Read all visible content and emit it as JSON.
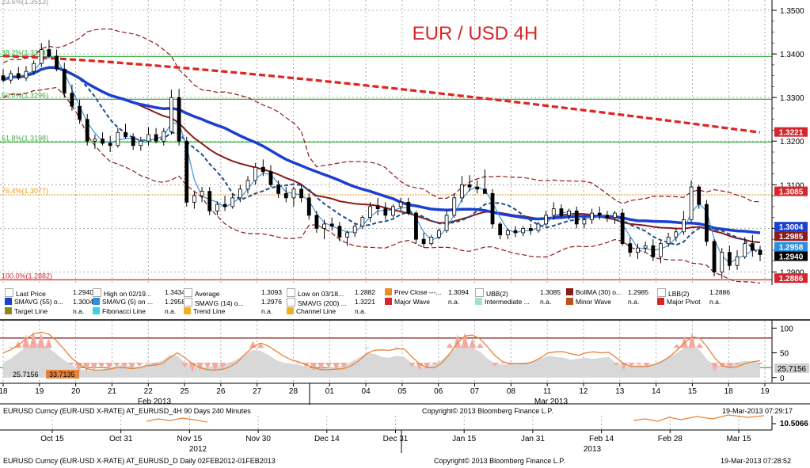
{
  "chart_data": {
    "type": "candlestick",
    "title": "EUR / USD 4H",
    "ylim": [
      1.287,
      1.352
    ],
    "y_ticks": [
      "1.3500",
      "1.3400",
      "1.3300",
      "1.3200",
      "1.3100",
      "1.3000",
      "1.2900"
    ],
    "x_ticks": [
      "18",
      "19",
      "20",
      "21",
      "22",
      "25",
      "26",
      "27",
      "28",
      "01",
      "04",
      "05",
      "06",
      "07",
      "08",
      "11",
      "12",
      "13",
      "14",
      "15",
      "18",
      "19"
    ],
    "x_group_labels": [
      "Feb 2013",
      "Mar 2013"
    ],
    "top_clipped_label": "23.6%(1.3513)",
    "fib_levels": [
      {
        "label": "38.2%(1.3394)",
        "value": 1.3394
      },
      {
        "label": "50.0%(1.3296)",
        "value": 1.3296
      },
      {
        "label": "61.8%(1.3198)",
        "value": 1.3198
      },
      {
        "label": "76.4%(1.3077)",
        "value": 1.3077
      },
      {
        "label": "100.0%(1.2882)",
        "value": 1.2882
      }
    ],
    "price_tags": [
      {
        "value": "1.3221",
        "bg": "#d6262c",
        "fg": "#ffffff"
      },
      {
        "value": "1.3085",
        "bg": "#d6262c",
        "fg": "#ffffff"
      },
      {
        "value": "1.3004",
        "bg": "#1b3fd0",
        "fg": "#ffffff"
      },
      {
        "value": "1.2985",
        "bg": "#8b1a1a",
        "fg": "#ffffff"
      },
      {
        "value": "1.2958",
        "bg": "#2a8fe0",
        "fg": "#ffffff"
      },
      {
        "value": "1.2940",
        "bg": "#000000",
        "fg": "#ffffff"
      },
      {
        "value": "1.2886",
        "bg": "#d6262c",
        "fg": "#ffffff"
      }
    ],
    "candles": [
      [
        1.335,
        1.3365,
        1.3335,
        1.334
      ],
      [
        1.334,
        1.3362,
        1.3332,
        1.3355
      ],
      [
        1.3355,
        1.337,
        1.334,
        1.3345
      ],
      [
        1.3345,
        1.3372,
        1.3338,
        1.336
      ],
      [
        1.336,
        1.3385,
        1.3352,
        1.3378
      ],
      [
        1.3378,
        1.3425,
        1.337,
        1.341
      ],
      [
        1.341,
        1.3432,
        1.339,
        1.3395
      ],
      [
        1.3395,
        1.341,
        1.336,
        1.3365
      ],
      [
        1.3365,
        1.338,
        1.33,
        1.331
      ],
      [
        1.331,
        1.333,
        1.327,
        1.328
      ],
      [
        1.328,
        1.3295,
        1.324,
        1.325
      ],
      [
        1.325,
        1.3262,
        1.319,
        1.32
      ],
      [
        1.32,
        1.3215,
        1.3182,
        1.3205
      ],
      [
        1.3205,
        1.322,
        1.319,
        1.3195
      ],
      [
        1.3195,
        1.3212,
        1.3175,
        1.319
      ],
      [
        1.319,
        1.323,
        1.3185,
        1.322
      ],
      [
        1.322,
        1.324,
        1.3205,
        1.321
      ],
      [
        1.321,
        1.3218,
        1.318,
        1.319
      ],
      [
        1.319,
        1.321,
        1.3178,
        1.32
      ],
      [
        1.32,
        1.3232,
        1.319,
        1.3215
      ],
      [
        1.3215,
        1.323,
        1.3195,
        1.32
      ],
      [
        1.32,
        1.323,
        1.319,
        1.3222
      ],
      [
        1.3222,
        1.3318,
        1.3215,
        1.33
      ],
      [
        1.33,
        1.332,
        1.319,
        1.32
      ],
      [
        1.32,
        1.321,
        1.305,
        1.306
      ],
      [
        1.306,
        1.3085,
        1.3045,
        1.3075
      ],
      [
        1.3075,
        1.3095,
        1.306,
        1.3085
      ],
      [
        1.3085,
        1.3095,
        1.303,
        1.304
      ],
      [
        1.304,
        1.3062,
        1.303,
        1.3055
      ],
      [
        1.3055,
        1.3075,
        1.304,
        1.305
      ],
      [
        1.305,
        1.308,
        1.3045,
        1.307
      ],
      [
        1.307,
        1.31,
        1.306,
        1.309
      ],
      [
        1.309,
        1.312,
        1.308,
        1.311
      ],
      [
        1.311,
        1.315,
        1.31,
        1.314
      ],
      [
        1.314,
        1.3158,
        1.312,
        1.313
      ],
      [
        1.313,
        1.3145,
        1.3095,
        1.31
      ],
      [
        1.31,
        1.311,
        1.307,
        1.308
      ],
      [
        1.308,
        1.3095,
        1.306,
        1.307
      ],
      [
        1.307,
        1.3095,
        1.305,
        1.309
      ],
      [
        1.309,
        1.31,
        1.306,
        1.307
      ],
      [
        1.307,
        1.308,
        1.302,
        1.303
      ],
      [
        1.303,
        1.304,
        1.299,
        1.3
      ],
      [
        1.3,
        1.302,
        1.2975,
        1.301
      ],
      [
        1.301,
        1.3025,
        1.2995,
        1.3005
      ],
      [
        1.3005,
        1.3015,
        1.297,
        1.298
      ],
      [
        1.298,
        1.2995,
        1.296,
        1.299
      ],
      [
        1.299,
        1.301,
        1.298,
        1.3005
      ],
      [
        1.3005,
        1.303,
        1.2998,
        1.3025
      ],
      [
        1.3025,
        1.306,
        1.3015,
        1.305
      ],
      [
        1.305,
        1.307,
        1.303,
        1.3045
      ],
      [
        1.3045,
        1.306,
        1.302,
        1.303
      ],
      [
        1.303,
        1.3055,
        1.3025,
        1.305
      ],
      [
        1.305,
        1.307,
        1.304,
        1.306
      ],
      [
        1.306,
        1.307,
        1.303,
        1.3035
      ],
      [
        1.3035,
        1.304,
        1.2965,
        1.2975
      ],
      [
        1.2975,
        1.299,
        1.2955,
        1.2965
      ],
      [
        1.2965,
        1.2985,
        1.296,
        1.298
      ],
      [
        1.298,
        1.3,
        1.2975,
        1.2995
      ],
      [
        1.2995,
        1.304,
        1.299,
        1.303
      ],
      [
        1.303,
        1.308,
        1.3025,
        1.307
      ],
      [
        1.307,
        1.312,
        1.306,
        1.31
      ],
      [
        1.31,
        1.3122,
        1.3085,
        1.3095
      ],
      [
        1.3095,
        1.311,
        1.308,
        1.309
      ],
      [
        1.309,
        1.3135,
        1.3085,
        1.308
      ],
      [
        1.308,
        1.309,
        1.3,
        1.301
      ],
      [
        1.301,
        1.3015,
        1.2975,
        1.2985
      ],
      [
        1.2985,
        1.3,
        1.2975,
        1.2995
      ],
      [
        1.2995,
        1.3005,
        1.298,
        1.299
      ],
      [
        1.299,
        1.3005,
        1.2982,
        1.3
      ],
      [
        1.3,
        1.301,
        1.2985,
        1.2995
      ],
      [
        1.2995,
        1.3015,
        1.299,
        1.301
      ],
      [
        1.301,
        1.304,
        1.3005,
        1.303
      ],
      [
        1.303,
        1.306,
        1.302,
        1.3045
      ],
      [
        1.3045,
        1.3055,
        1.3025,
        1.303
      ],
      [
        1.303,
        1.3045,
        1.302,
        1.304
      ],
      [
        1.304,
        1.305,
        1.3,
        1.301
      ],
      [
        1.301,
        1.3025,
        1.3,
        1.302
      ],
      [
        1.302,
        1.3045,
        1.301,
        1.3035
      ],
      [
        1.3035,
        1.305,
        1.302,
        1.303
      ],
      [
        1.303,
        1.304,
        1.3015,
        1.3025
      ],
      [
        1.3025,
        1.304,
        1.301,
        1.3035
      ],
      [
        1.3035,
        1.3045,
        1.296,
        1.2965
      ],
      [
        1.2965,
        1.298,
        1.2935,
        1.2945
      ],
      [
        1.2945,
        1.2965,
        1.293,
        1.2955
      ],
      [
        1.2955,
        1.297,
        1.2945,
        1.296
      ],
      [
        1.296,
        1.2975,
        1.2925,
        1.2935
      ],
      [
        1.2935,
        1.297,
        1.292,
        1.2965
      ],
      [
        1.2965,
        1.299,
        1.2958,
        1.298
      ],
      [
        1.298,
        1.3,
        1.297,
        1.2992
      ],
      [
        1.2992,
        1.304,
        1.2985,
        1.302
      ],
      [
        1.302,
        1.311,
        1.3015,
        1.3095
      ],
      [
        1.3095,
        1.31,
        1.3045,
        1.3055
      ],
      [
        1.3055,
        1.3065,
        1.296,
        1.297
      ],
      [
        1.297,
        1.2975,
        1.289,
        1.29
      ],
      [
        1.29,
        1.2955,
        1.2885,
        1.2945
      ],
      [
        1.2945,
        1.296,
        1.2905,
        1.2915
      ],
      [
        1.2915,
        1.295,
        1.2905,
        1.2935
      ],
      [
        1.2935,
        1.298,
        1.293,
        1.2965
      ],
      [
        1.2965,
        1.2985,
        1.2935,
        1.295
      ],
      [
        1.295,
        1.296,
        1.2925,
        1.294
      ]
    ],
    "osc_ticks": [
      "100",
      "50",
      "0"
    ],
    "osc_ylim": [
      -10,
      115
    ],
    "osc_levels": [
      80,
      20
    ],
    "osc_tags": [
      {
        "value": "33.7135",
        "bg": "#e8823a"
      },
      {
        "value": "25.7156",
        "bg": "#d0d0d0"
      }
    ],
    "osc_k": [
      55,
      62,
      74,
      88,
      95,
      92,
      80,
      60,
      40,
      25,
      12,
      10,
      14,
      18,
      16,
      22,
      20,
      15,
      22,
      28,
      24,
      30,
      60,
      55,
      20,
      10,
      14,
      18,
      12,
      18,
      28,
      40,
      60,
      74,
      70,
      55,
      40,
      30,
      32,
      28,
      20,
      12,
      14,
      20,
      15,
      18,
      30,
      45,
      62,
      58,
      48,
      55,
      62,
      55,
      22,
      14,
      18,
      26,
      45,
      70,
      88,
      92,
      80,
      70,
      40,
      22,
      28,
      25,
      30,
      28,
      35,
      48,
      58,
      50,
      55,
      40,
      45,
      55,
      50,
      48,
      55,
      24,
      15,
      22,
      26,
      20,
      30,
      40,
      55,
      68,
      85,
      92,
      70,
      30,
      12,
      20,
      18,
      25,
      35,
      30,
      26
    ],
    "osc_d": [
      50,
      56,
      66,
      78,
      88,
      92,
      88,
      75,
      58,
      40,
      28,
      18,
      15,
      15,
      17,
      20,
      20,
      18,
      20,
      24,
      25,
      28,
      40,
      50,
      40,
      28,
      20,
      16,
      15,
      17,
      22,
      32,
      48,
      62,
      70,
      64,
      54,
      44,
      36,
      32,
      26,
      20,
      16,
      16,
      17,
      18,
      24,
      34,
      48,
      55,
      56,
      55,
      58,
      58,
      42,
      28,
      20,
      20,
      30,
      48,
      70,
      84,
      86,
      78,
      62,
      44,
      32,
      28,
      28,
      28,
      32,
      40,
      50,
      52,
      52,
      48,
      45,
      50,
      52,
      50,
      51,
      40,
      28,
      22,
      22,
      22,
      26,
      32,
      42,
      55,
      70,
      82,
      80,
      62,
      40,
      24,
      20,
      22,
      28,
      32,
      34
    ],
    "osc_area": [
      30,
      38,
      50,
      62,
      70,
      68,
      60,
      48,
      36,
      26,
      18,
      14,
      14,
      16,
      20,
      24,
      26,
      22,
      20,
      28,
      30,
      34,
      46,
      44,
      30,
      22,
      20,
      22,
      24,
      26,
      30,
      38,
      48,
      56,
      54,
      46,
      36,
      30,
      28,
      26,
      22,
      18,
      18,
      20,
      22,
      24,
      32,
      40,
      50,
      48,
      42,
      40,
      44,
      42,
      28,
      20,
      22,
      28,
      36,
      50,
      62,
      66,
      60,
      52,
      38,
      28,
      26,
      28,
      30,
      30,
      32,
      38,
      44,
      42,
      40,
      36,
      38,
      40,
      38,
      40,
      42,
      28,
      22,
      24,
      26,
      24,
      28,
      34,
      42,
      50,
      60,
      64,
      56,
      36,
      24,
      26,
      26,
      30,
      34,
      32,
      30
    ],
    "osc_x_ticks": [
      "18",
      "19",
      "20",
      "21",
      "22",
      "25",
      "26",
      "27",
      "28",
      "01",
      "04",
      "05",
      "06",
      "07",
      "08",
      "11",
      "12",
      "13",
      "14",
      "15",
      "18",
      "19"
    ],
    "mini_x_ticks": [
      "Oct 15",
      "Oct 31",
      "Nov 15",
      "Nov 30",
      "Dec 14",
      "Dec 31",
      "Jan 15",
      "Jan 31",
      "Feb 14",
      "Feb 28",
      "Mar 15"
    ],
    "mini_year_labels": [
      "2012",
      "2013"
    ],
    "mini_tag": "10.5066"
  },
  "legend": {
    "rows": [
      [
        {
          "color": "#ffffff",
          "text": "Last Price",
          "value": "1.2940"
        },
        {
          "color": "#ffffff",
          "text": "High on 02/19...",
          "value": "1.3434"
        },
        {
          "color": "#ffffff",
          "text": "Average",
          "value": "1.3093"
        },
        {
          "color": "#ffffff",
          "text": "Low on 03/18...",
          "value": "1.2882"
        },
        {
          "color": "#f08a24",
          "text": "Prev Close ---...",
          "value": "1.3094"
        },
        {
          "color": "#ffffff",
          "text": "UBB(2)",
          "value": "1.3085"
        },
        {
          "color": "#8b1a1a",
          "text": "BollMA (30) o...",
          "value": "1.2985"
        },
        {
          "color": "#ffffff",
          "text": "LBB(2)",
          "value": "1.2886"
        }
      ],
      [
        {
          "color": "#1b3fd0",
          "text": "SMAVG (55) o...",
          "value": "1.3004"
        },
        {
          "color": "#2a8fe0",
          "text": "SMAVG (5) on ...",
          "value": "1.2958"
        },
        {
          "color": "#ffffff",
          "text": "SMAVG (14) o...",
          "value": "1.2976"
        },
        {
          "color": "#ffffff",
          "text": "SMAVG (200) ...",
          "value": "1.3221"
        },
        {
          "color": "#d6262c",
          "text": "Major Wave",
          "value": "n.a."
        },
        {
          "color": "#9fe3c8",
          "text": "Intermediate ...",
          "value": "n.a."
        },
        {
          "color": "#c0501c",
          "text": "Minor Wave",
          "value": "n.a."
        },
        {
          "color": "#d6262c",
          "text": "Major Pivot",
          "value": "n.a."
        }
      ],
      [
        {
          "color": "#8a8a1a",
          "text": "Target Line",
          "value": "n.a."
        },
        {
          "color": "#3ad0e0",
          "text": "Fibonacci Line",
          "value": "n.a."
        },
        {
          "color": "#f0b020",
          "text": "Trend Line",
          "value": "n.a."
        },
        {
          "color": "#f0b020",
          "text": "Channel Line",
          "value": "n.a."
        }
      ]
    ]
  },
  "footer": {
    "line1_left": "EURUSD Curncy (EUR-USD X-RATE) AT_EURUSD_4H 90 Days 240 Minutes",
    "line1_center": "Copyright© 2013 Bloomberg Finance L.P.",
    "line1_right": "19-Mar-2013 07:29:17",
    "line2_left": "EURUSD Curncy (EUR-USD X-RATE) AT_EURUSD_D  Daily 02FEB2012-01FEB2013",
    "line2_center": "Copyright© 2013 Bloomberg Finance L.P.",
    "line2_right": "19-Mar-2013 07:28:52"
  },
  "colors": {
    "sma55": "#1b3fd0",
    "sma5": "#2a8fe0",
    "sma14": "#1f4f8a",
    "sma200": "#e0231f",
    "bollma": "#8b1a1a",
    "bands": "#8b1a1a",
    "fib": "#3cb043",
    "orange_fib": "#e39a2b",
    "candle": "#000000"
  }
}
